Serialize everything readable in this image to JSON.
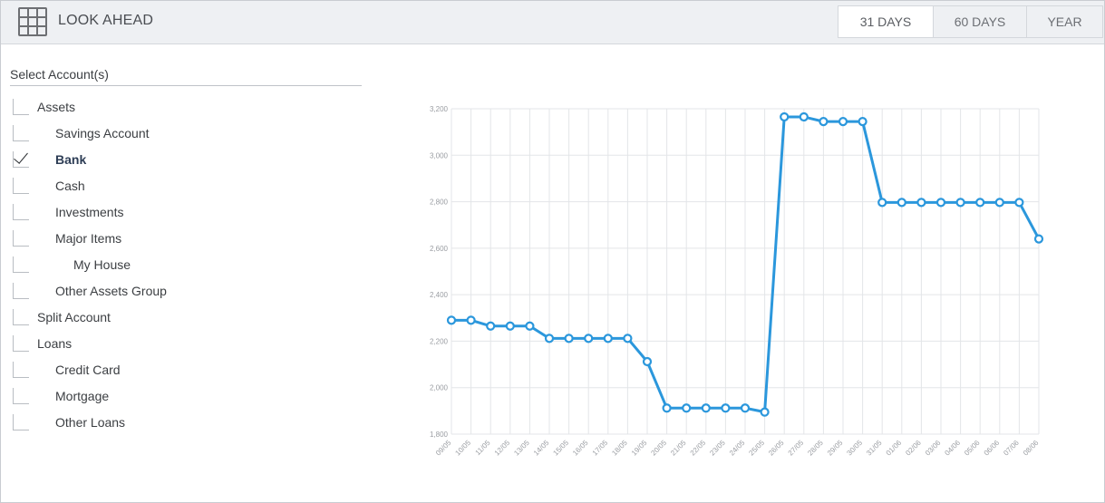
{
  "header": {
    "title": "LOOK AHEAD",
    "tabs": [
      {
        "label": "31 DAYS",
        "active": true
      },
      {
        "label": "60 DAYS",
        "active": false
      },
      {
        "label": "YEAR",
        "active": false
      }
    ]
  },
  "accounts": {
    "label": "Select Account(s)",
    "items": [
      {
        "label": "Assets",
        "checked": false,
        "bold": false,
        "level": 0
      },
      {
        "label": "Savings Account",
        "checked": false,
        "bold": false,
        "level": 1
      },
      {
        "label": "Bank",
        "checked": true,
        "bold": true,
        "level": 1
      },
      {
        "label": "Cash",
        "checked": false,
        "bold": false,
        "level": 1
      },
      {
        "label": "Investments",
        "checked": false,
        "bold": false,
        "level": 1
      },
      {
        "label": "Major Items",
        "checked": false,
        "bold": false,
        "level": 1
      },
      {
        "label": "My House",
        "checked": false,
        "bold": false,
        "level": 2
      },
      {
        "label": "Other Assets Group",
        "checked": false,
        "bold": false,
        "level": 1
      },
      {
        "label": "Split Account",
        "checked": false,
        "bold": false,
        "level": 0
      },
      {
        "label": "Loans",
        "checked": false,
        "bold": false,
        "level": 0
      },
      {
        "label": "Credit Card",
        "checked": false,
        "bold": false,
        "level": 1
      },
      {
        "label": "Mortgage",
        "checked": false,
        "bold": false,
        "level": 1
      },
      {
        "label": "Other Loans",
        "checked": false,
        "bold": false,
        "level": 1
      }
    ]
  },
  "colors": {
    "line": "#2b97dc",
    "grid": "#e3e5e8",
    "tick_text": "#9a9da2"
  },
  "chart_data": {
    "type": "line",
    "title": "",
    "xlabel": "",
    "ylabel": "",
    "ylim": [
      1800,
      3200
    ],
    "yticks": [
      "1,800",
      "2,000",
      "2,200",
      "2,400",
      "2,600",
      "2,800",
      "3,000",
      "3,200"
    ],
    "ytick_values": [
      1800,
      2000,
      2200,
      2400,
      2600,
      2800,
      3000,
      3200
    ],
    "categories": [
      "09/05",
      "10/05",
      "11/05",
      "12/05",
      "13/05",
      "14/05",
      "15/05",
      "16/05",
      "17/05",
      "18/05",
      "19/05",
      "20/05",
      "21/05",
      "22/05",
      "23/05",
      "24/05",
      "25/05",
      "26/05",
      "27/05",
      "28/05",
      "29/05",
      "30/05",
      "31/05",
      "01/06",
      "02/06",
      "03/06",
      "04/06",
      "05/06",
      "06/06",
      "07/06",
      "08/06"
    ],
    "series": [
      {
        "name": "Bank",
        "values": [
          2290,
          2290,
          2265,
          2265,
          2265,
          2212,
          2212,
          2212,
          2212,
          2212,
          2112,
          1912,
          1912,
          1912,
          1912,
          1912,
          1895,
          3165,
          3165,
          3145,
          3145,
          3145,
          2797,
          2797,
          2797,
          2797,
          2797,
          2797,
          2797,
          2797,
          2640
        ]
      }
    ],
    "grid": true
  }
}
